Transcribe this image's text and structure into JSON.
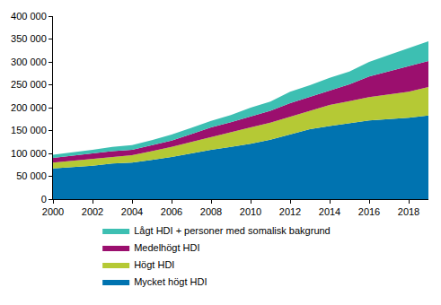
{
  "chart_data": {
    "type": "area",
    "stacked": true,
    "grid": false,
    "legend": "bottom",
    "x": [
      2000,
      2001,
      2002,
      2003,
      2004,
      2005,
      2006,
      2007,
      2008,
      2009,
      2010,
      2011,
      2012,
      2013,
      2014,
      2015,
      2016,
      2017,
      2018,
      2019
    ],
    "xlim": [
      2000,
      2019
    ],
    "xticks": [
      2000,
      2002,
      2004,
      2006,
      2008,
      2010,
      2012,
      2014,
      2016,
      2018
    ],
    "ylim": [
      0,
      400000
    ],
    "yticks": [
      0,
      {
        "value": 50000,
        "label": "50 000"
      },
      {
        "value": 100000,
        "label": "100 000"
      },
      {
        "value": 150000,
        "label": "150 000"
      },
      {
        "value": 200000,
        "label": "200 000"
      },
      {
        "value": 250000,
        "label": "250 000"
      },
      {
        "value": 300000,
        "label": "300 000"
      },
      {
        "value": 350000,
        "label": "350 000"
      },
      {
        "value": 400000,
        "label": "400 000"
      }
    ],
    "series": [
      {
        "name": "Mycket högt HDI",
        "color": "#0073b0",
        "values": [
          67000,
          70000,
          73000,
          78000,
          80000,
          86000,
          92000,
          100000,
          108000,
          114000,
          121000,
          130000,
          142000,
          153000,
          160000,
          166000,
          172000,
          175000,
          178000,
          183000
        ]
      },
      {
        "name": "Högt HDI",
        "color": "#b5c935",
        "values": [
          13000,
          14000,
          15000,
          15000,
          16000,
          19000,
          22000,
          25000,
          28000,
          32000,
          36000,
          37000,
          38000,
          41000,
          46000,
          48000,
          51000,
          54000,
          57000,
          62000
        ]
      },
      {
        "name": "Medelhögt HDI",
        "color": "#9b0f6e",
        "values": [
          10000,
          11000,
          12000,
          12000,
          12000,
          13000,
          14000,
          17000,
          21000,
          22000,
          23000,
          26000,
          30000,
          30000,
          32000,
          37000,
          45000,
          50000,
          55000,
          57000
        ]
      },
      {
        "name": "Lågt HDI + personer med somalisk bakgrund",
        "color": "#3dbfb2",
        "values": [
          7000,
          7000,
          8000,
          9000,
          10000,
          11000,
          13000,
          14000,
          14000,
          16000,
          20000,
          20000,
          25000,
          25000,
          27000,
          28000,
          32000,
          36000,
          40000,
          43000
        ]
      }
    ]
  }
}
